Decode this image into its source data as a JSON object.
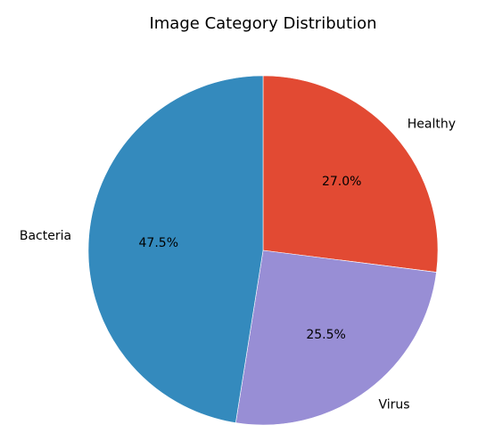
{
  "chart_data": {
    "type": "pie",
    "title": "Image Category Distribution",
    "slices": [
      {
        "label": "Healthy",
        "value": 27.0,
        "pct_label": "27.0%",
        "color": "#E24A33"
      },
      {
        "label": "Virus",
        "value": 25.5,
        "pct_label": "25.5%",
        "color": "#988ED5"
      },
      {
        "label": "Bacteria",
        "value": 47.5,
        "pct_label": "47.5%",
        "color": "#348ABD"
      }
    ],
    "start_angle_deg": 90,
    "direction": "clockwise"
  }
}
